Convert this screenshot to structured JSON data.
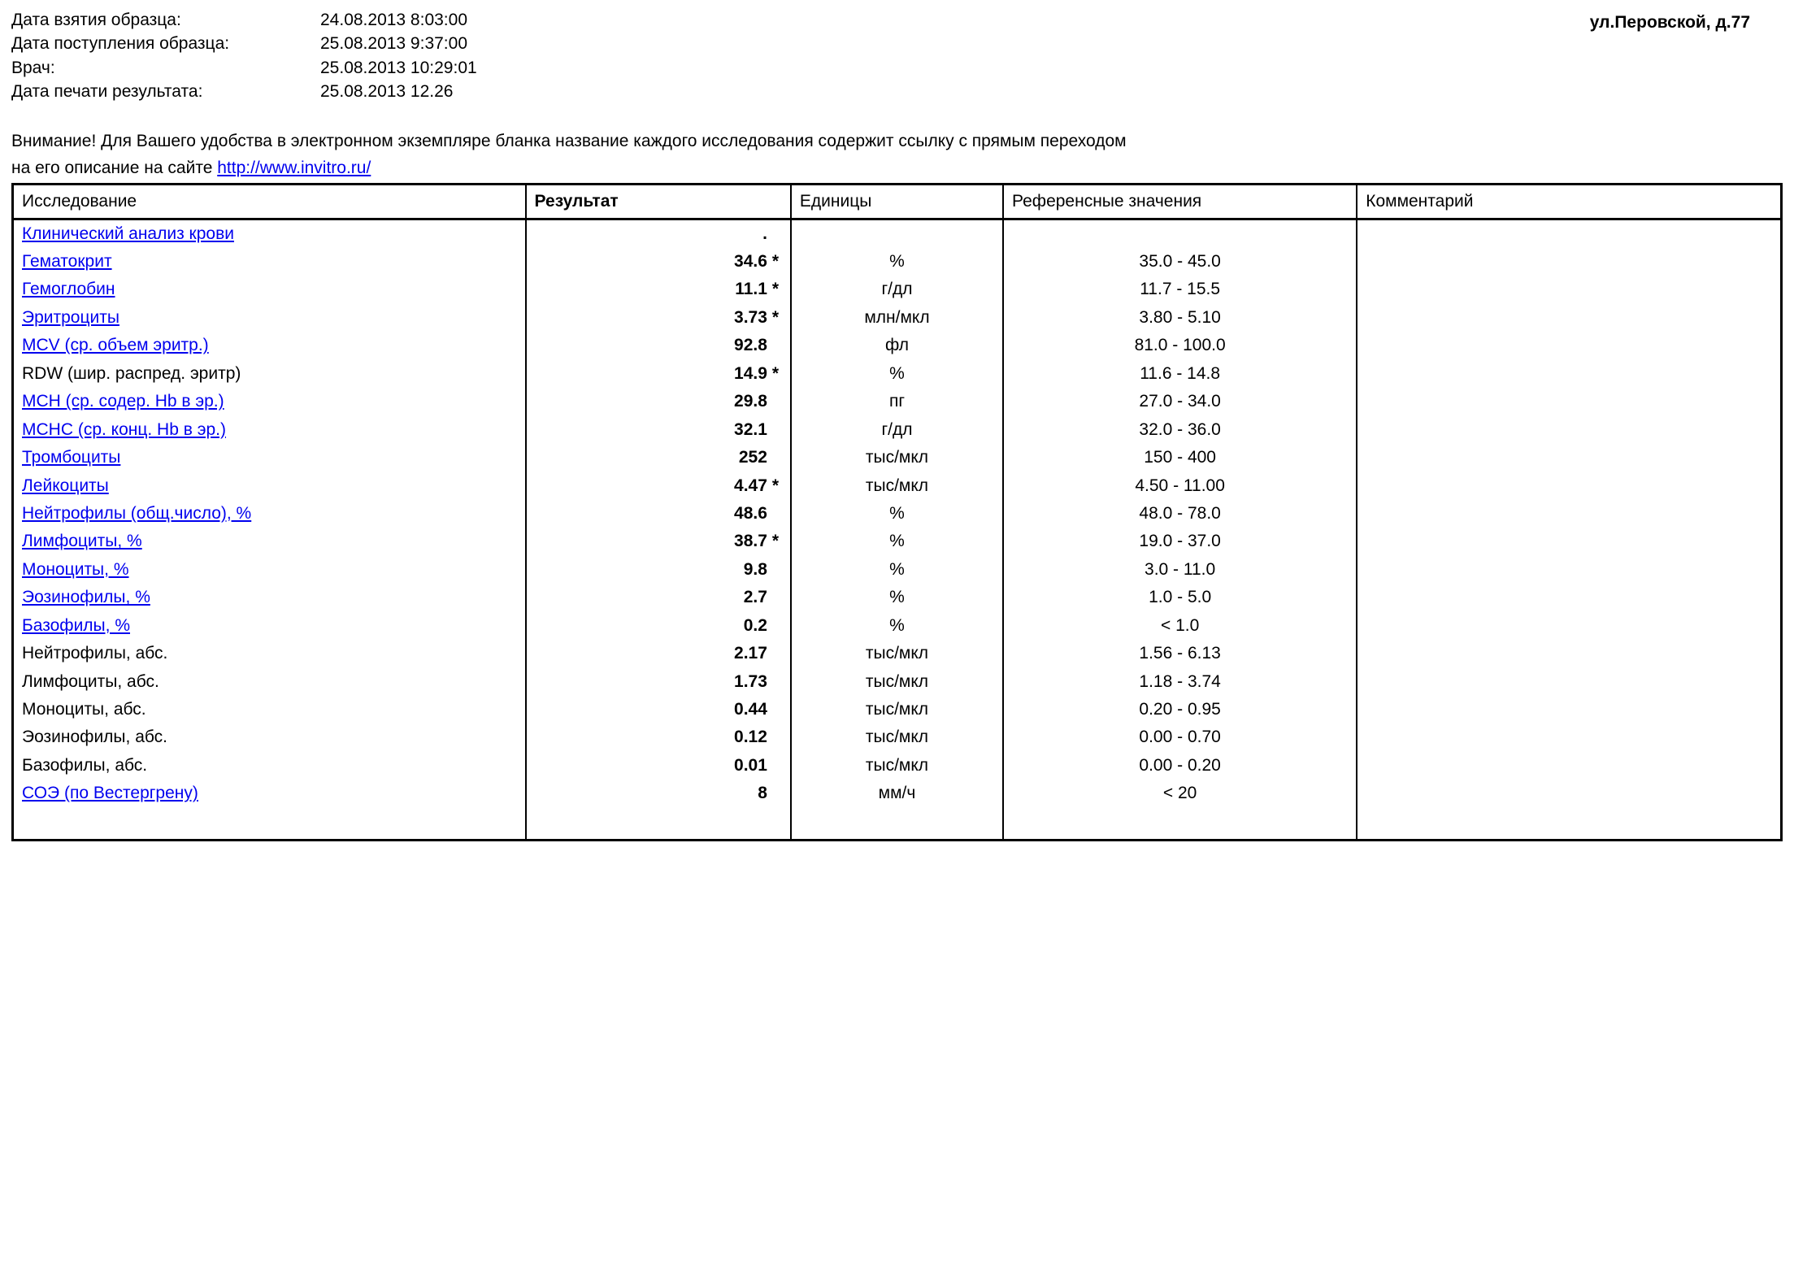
{
  "header": {
    "labels": {
      "sample_taken": "Дата взятия образца:",
      "sample_received": "Дата поступления образца:",
      "doctor": "Врач:",
      "print_date": "Дата печати результата:"
    },
    "values": {
      "sample_taken": "24.08.2013   8:03:00",
      "sample_received": "25.08.2013   9:37:00",
      "doctor": "25.08.2013  10:29:01",
      "print_date": "25.08.2013 12.26"
    },
    "address": "ул.Перовской, д.77"
  },
  "notice": {
    "line1": "Внимание! Для Вашего удобства в электронном экземпляре бланка название каждого исследования содержит ссылку с прямым переходом",
    "line2_prefix": "на его описание на сайте ",
    "link_text": "http://www.invitro.ru/"
  },
  "table": {
    "columns": {
      "test": "Исследование",
      "result": "Результат",
      "units": "Единицы",
      "reference": "Референсные значения",
      "comment": "Комментарий"
    },
    "rows": [
      {
        "name": "Клинический анализ крови",
        "link": true,
        "result": ".",
        "flag": "",
        "units": "",
        "reference": "",
        "comment": ""
      },
      {
        "name": "Гематокрит",
        "link": true,
        "result": "34.6",
        "flag": "*",
        "units": "%",
        "reference": "35.0 - 45.0",
        "comment": ""
      },
      {
        "name": "Гемоглобин",
        "link": true,
        "result": "11.1",
        "flag": "*",
        "units": "г/дл",
        "reference": "11.7 - 15.5",
        "comment": ""
      },
      {
        "name": "Эритроциты",
        "link": true,
        "result": "3.73",
        "flag": "*",
        "units": "млн/мкл",
        "reference": "3.80 - 5.10",
        "comment": ""
      },
      {
        "name": "MCV (ср. объем эритр.)",
        "link": true,
        "result": "92.8",
        "flag": "",
        "units": "фл",
        "reference": "81.0 - 100.0",
        "comment": ""
      },
      {
        "name": "RDW (шир. распред. эритр)",
        "link": false,
        "result": "14.9",
        "flag": "*",
        "units": "%",
        "reference": "11.6 - 14.8",
        "comment": ""
      },
      {
        "name": "MCH (ср. содер. Hb в эр.)",
        "link": true,
        "result": "29.8",
        "flag": "",
        "units": "пг",
        "reference": "27.0 - 34.0",
        "comment": ""
      },
      {
        "name": "MCHC (ср. конц. Hb в эр.)",
        "link": true,
        "result": "32.1",
        "flag": "",
        "units": "г/дл",
        "reference": "32.0 - 36.0",
        "comment": ""
      },
      {
        "name": "Тромбоциты",
        "link": true,
        "result": "252",
        "flag": "",
        "units": "тыс/мкл",
        "reference": "150 - 400",
        "comment": ""
      },
      {
        "name": "Лейкоциты",
        "link": true,
        "result": "4.47",
        "flag": "*",
        "units": "тыс/мкл",
        "reference": "4.50 - 11.00",
        "comment": ""
      },
      {
        "name": "Нейтрофилы (общ.число), %",
        "link": true,
        "result": "48.6",
        "flag": "",
        "units": "%",
        "reference": "48.0 - 78.0",
        "comment": ""
      },
      {
        "name": "Лимфоциты, %",
        "link": true,
        "result": "38.7",
        "flag": "*",
        "units": "%",
        "reference": "19.0 - 37.0",
        "comment": ""
      },
      {
        "name": "Моноциты, %",
        "link": true,
        "result": "9.8",
        "flag": "",
        "units": "%",
        "reference": "3.0 - 11.0",
        "comment": ""
      },
      {
        "name": "Эозинофилы, %",
        "link": true,
        "result": "2.7",
        "flag": "",
        "units": "%",
        "reference": "1.0 - 5.0",
        "comment": ""
      },
      {
        "name": "Базофилы, %",
        "link": true,
        "result": "0.2",
        "flag": "",
        "units": "%",
        "reference": "< 1.0",
        "comment": ""
      },
      {
        "name": "Нейтрофилы, абс.",
        "link": false,
        "result": "2.17",
        "flag": "",
        "units": "тыс/мкл",
        "reference": "1.56 - 6.13",
        "comment": ""
      },
      {
        "name": "Лимфоциты, абс.",
        "link": false,
        "result": "1.73",
        "flag": "",
        "units": "тыс/мкл",
        "reference": "1.18 - 3.74",
        "comment": ""
      },
      {
        "name": "Моноциты, абс.",
        "link": false,
        "result": "0.44",
        "flag": "",
        "units": "тыс/мкл",
        "reference": "0.20 - 0.95",
        "comment": ""
      },
      {
        "name": "Эозинофилы, абс.",
        "link": false,
        "result": "0.12",
        "flag": "",
        "units": "тыс/мкл",
        "reference": "0.00 - 0.70",
        "comment": ""
      },
      {
        "name": "Базофилы, абс.",
        "link": false,
        "result": "0.01",
        "flag": "",
        "units": "тыс/мкл",
        "reference": "0.00 - 0.20",
        "comment": ""
      },
      {
        "name": "СОЭ (по Вестергрену)",
        "link": true,
        "result": "8",
        "flag": "",
        "units": "мм/ч",
        "reference": "< 20",
        "comment": ""
      }
    ]
  }
}
